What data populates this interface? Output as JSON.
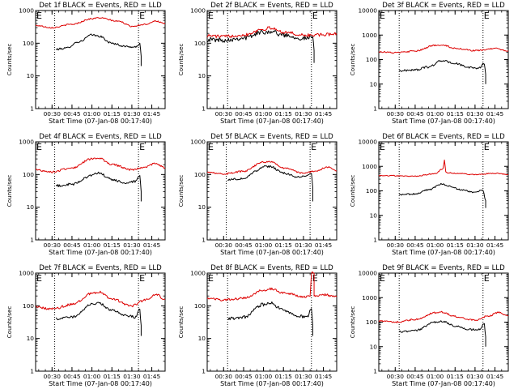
{
  "colors": {
    "events": "#000000",
    "lld": "#dd0000",
    "background": "#ffffff",
    "axis": "#000000"
  },
  "chart_data": [
    {
      "type": "line",
      "title": "Det 1f BLACK = Events, RED = LLD",
      "xlabel": "Start Time (07-Jan-08 00:17:40)",
      "ylabel": "Counts/sec",
      "yscale": "log",
      "ylim": [
        1,
        1000
      ],
      "yticks": [
        "1",
        "10",
        "100",
        "1000"
      ],
      "xlim": [
        "00:17:40",
        "01:55:00"
      ],
      "xticks": [
        "00:30",
        "00:45",
        "01:00",
        "01:15",
        "01:30",
        "01:45"
      ],
      "markers": [
        {
          "label": "E",
          "x": "00:17:40",
          "dotted_line": false
        },
        {
          "label": "E",
          "x": "01:35:00",
          "dotted_line": true
        },
        {
          "label": "",
          "x": "00:32:00",
          "dotted_line": true
        }
      ],
      "series": [
        {
          "key": "events",
          "x": [
            "00:33",
            "00:40",
            "00:50",
            "01:00",
            "01:05",
            "01:15",
            "01:25",
            "01:33",
            "01:36",
            "01:37",
            "01:37"
          ],
          "values": [
            65,
            70,
            110,
            180,
            165,
            100,
            80,
            75,
            100,
            40,
            20
          ],
          "noise": 0.03
        },
        {
          "key": "lld",
          "x": [
            "00:17:40",
            "00:30",
            "00:45",
            "01:00",
            "01:05",
            "01:20",
            "01:30",
            "01:40",
            "01:48",
            "01:55"
          ],
          "values": [
            350,
            300,
            380,
            560,
            600,
            470,
            330,
            380,
            480,
            390
          ],
          "noise": 0.02
        }
      ]
    },
    {
      "type": "line",
      "title": "Det 2f BLACK = Events, RED = LLD",
      "xlabel": "Start Time (07-Jan-08 00:17:40)",
      "ylabel": "Counts/sec",
      "yscale": "log",
      "ylim": [
        1,
        1000
      ],
      "yticks": [
        "1",
        "10",
        "100",
        "1000"
      ],
      "xlim": [
        "00:17:40",
        "01:55:00"
      ],
      "xticks": [
        "00:30",
        "00:45",
        "01:00",
        "01:15",
        "01:30",
        "01:45"
      ],
      "markers": [
        {
          "label": "E",
          "x": "00:17:40",
          "dotted_line": false
        },
        {
          "label": "E",
          "x": "01:36:00",
          "dotted_line": true
        },
        {
          "label": "",
          "x": "00:33:00",
          "dotted_line": true
        }
      ],
      "series": [
        {
          "key": "events",
          "x": [
            "00:17:40",
            "00:30",
            "00:45",
            "01:00",
            "01:05",
            "01:15",
            "01:30",
            "01:37",
            "01:38",
            "01:38"
          ],
          "values": [
            130,
            125,
            145,
            220,
            230,
            180,
            140,
            150,
            60,
            25
          ],
          "noise": 0.07
        },
        {
          "key": "lld",
          "x": [
            "00:17:40",
            "00:30",
            "00:45",
            "01:00",
            "01:05",
            "01:15",
            "01:30",
            "01:45",
            "01:55"
          ],
          "values": [
            170,
            160,
            180,
            270,
            290,
            220,
            175,
            180,
            200
          ],
          "noise": 0.05
        }
      ]
    },
    {
      "type": "line",
      "title": "Det 3f BLACK = Events, RED = LLD",
      "xlabel": "Start Time (07-Jan-08 00:17:40)",
      "ylabel": "Counts/sec",
      "yscale": "log",
      "ylim": [
        1,
        10000
      ],
      "yticks": [
        "1",
        "10",
        "100",
        "1000",
        "10000"
      ],
      "xlim": [
        "00:17:40",
        "01:55:00"
      ],
      "xticks": [
        "00:30",
        "00:45",
        "01:00",
        "01:15",
        "01:30",
        "01:45"
      ],
      "markers": [
        {
          "label": "E",
          "x": "00:17:40",
          "dotted_line": false
        },
        {
          "label": "E",
          "x": "01:36:00",
          "dotted_line": true
        },
        {
          "label": "",
          "x": "00:33:00",
          "dotted_line": true
        }
      ],
      "series": [
        {
          "key": "events",
          "x": [
            "00:33",
            "00:45",
            "00:55",
            "01:05",
            "01:15",
            "01:25",
            "01:33",
            "01:37",
            "01:38",
            "01:38"
          ],
          "values": [
            35,
            38,
            50,
            90,
            70,
            48,
            45,
            70,
            25,
            10
          ],
          "noise": 0.04
        },
        {
          "key": "lld",
          "x": [
            "00:17:40",
            "00:30",
            "00:45",
            "01:00",
            "01:05",
            "01:15",
            "01:30",
            "01:45",
            "01:55"
          ],
          "values": [
            210,
            190,
            220,
            380,
            400,
            290,
            230,
            280,
            230
          ],
          "noise": 0.03
        }
      ]
    },
    {
      "type": "line",
      "title": "Det 4f BLACK = Events, RED = LLD",
      "xlabel": "Start Time (07-Jan-08 00:17:40)",
      "ylabel": "Counts/sec",
      "yscale": "log",
      "ylim": [
        1,
        1000
      ],
      "yticks": [
        "1",
        "10",
        "100",
        "1000"
      ],
      "xlim": [
        "00:17:40",
        "01:55:00"
      ],
      "xticks": [
        "00:30",
        "00:45",
        "01:00",
        "01:15",
        "01:30",
        "01:45"
      ],
      "markers": [
        {
          "label": "E",
          "x": "00:17:40",
          "dotted_line": false
        },
        {
          "label": "E",
          "x": "01:35:00",
          "dotted_line": true
        },
        {
          "label": "",
          "x": "00:32:00",
          "dotted_line": true
        }
      ],
      "series": [
        {
          "key": "events",
          "x": [
            "00:33",
            "00:45",
            "01:00",
            "01:05",
            "01:15",
            "01:25",
            "01:33",
            "01:36",
            "01:37",
            "01:37"
          ],
          "values": [
            45,
            50,
            95,
            110,
            70,
            55,
            60,
            90,
            30,
            15
          ],
          "noise": 0.04
        },
        {
          "key": "lld",
          "x": [
            "00:17:40",
            "00:30",
            "00:45",
            "01:00",
            "01:05",
            "01:15",
            "01:30",
            "01:40",
            "01:48",
            "01:55"
          ],
          "values": [
            140,
            120,
            160,
            300,
            320,
            200,
            140,
            170,
            220,
            160
          ],
          "noise": 0.03
        }
      ]
    },
    {
      "type": "line",
      "title": "Det 5f BLACK = Events, RED = LLD",
      "xlabel": "Start Time (07-Jan-08 00:17:40)",
      "ylabel": "Counts/sec",
      "yscale": "log",
      "ylim": [
        1,
        1000
      ],
      "yticks": [
        "1",
        "10",
        "100",
        "1000"
      ],
      "xlim": [
        "00:17:40",
        "01:55:00"
      ],
      "xticks": [
        "00:30",
        "00:45",
        "01:00",
        "01:15",
        "01:30",
        "01:45"
      ],
      "markers": [
        {
          "label": "E",
          "x": "00:17:40",
          "dotted_line": false
        },
        {
          "label": "E",
          "x": "01:35:00",
          "dotted_line": true
        },
        {
          "label": "",
          "x": "00:32:00",
          "dotted_line": true
        }
      ],
      "series": [
        {
          "key": "events",
          "x": [
            "00:33",
            "00:45",
            "00:55",
            "01:00",
            "01:05",
            "01:15",
            "01:25",
            "01:33",
            "01:36",
            "01:37",
            "01:37"
          ],
          "values": [
            70,
            75,
            130,
            180,
            175,
            110,
            85,
            90,
            110,
            40,
            15
          ],
          "noise": 0.03
        },
        {
          "key": "lld",
          "x": [
            "00:17:40",
            "00:30",
            "00:45",
            "01:00",
            "01:05",
            "01:15",
            "01:30",
            "01:40",
            "01:48",
            "01:55"
          ],
          "values": [
            120,
            105,
            125,
            240,
            250,
            160,
            110,
            130,
            170,
            130
          ],
          "noise": 0.025
        }
      ]
    },
    {
      "type": "line",
      "title": "Det 6f BLACK = Events, RED = LLD",
      "xlabel": "Start Time (07-Jan-08 00:17:40)",
      "ylabel": "Counts/sec",
      "yscale": "log",
      "ylim": [
        1,
        10000
      ],
      "yticks": [
        "1",
        "10",
        "100",
        "1000",
        "10000"
      ],
      "xlim": [
        "00:17:40",
        "01:55:00"
      ],
      "xticks": [
        "00:30",
        "00:45",
        "01:00",
        "01:15",
        "01:30",
        "01:45"
      ],
      "markers": [
        {
          "label": "E",
          "x": "00:17:40",
          "dotted_line": false
        },
        {
          "label": "E",
          "x": "01:36:00",
          "dotted_line": true
        },
        {
          "label": "",
          "x": "00:33:00",
          "dotted_line": true
        }
      ],
      "series": [
        {
          "key": "events",
          "x": [
            "00:33",
            "00:45",
            "00:55",
            "01:05",
            "01:10",
            "01:20",
            "01:30",
            "01:36",
            "01:38",
            "01:38"
          ],
          "values": [
            70,
            75,
            110,
            190,
            160,
            110,
            85,
            110,
            40,
            20
          ],
          "noise": 0.03
        },
        {
          "key": "lld",
          "x": [
            "00:17:40",
            "00:45",
            "01:00",
            "01:06",
            "01:07",
            "01:08",
            "01:09",
            "01:15",
            "01:30",
            "01:45",
            "01:55"
          ],
          "values": [
            420,
            400,
            500,
            800,
            1800,
            600,
            550,
            520,
            460,
            520,
            460
          ],
          "noise": 0.02
        }
      ]
    },
    {
      "type": "line",
      "title": "Det 7f BLACK = Events, RED = LLD",
      "xlabel": "Start Time (07-Jan-08 00:17:40)",
      "ylabel": "Counts/sec",
      "yscale": "log",
      "ylim": [
        1,
        1000
      ],
      "yticks": [
        "1",
        "10",
        "100",
        "1000"
      ],
      "xlim": [
        "00:17:40",
        "01:55:00"
      ],
      "xticks": [
        "00:30",
        "00:45",
        "01:00",
        "01:15",
        "01:30",
        "01:45"
      ],
      "markers": [
        {
          "label": "E",
          "x": "00:17:40",
          "dotted_line": false
        },
        {
          "label": "E",
          "x": "01:35:00",
          "dotted_line": true
        },
        {
          "label": "",
          "x": "00:32:00",
          "dotted_line": true
        }
      ],
      "series": [
        {
          "key": "events",
          "x": [
            "00:33",
            "00:45",
            "01:00",
            "01:05",
            "01:15",
            "01:25",
            "01:33",
            "01:36",
            "01:37",
            "01:37"
          ],
          "values": [
            40,
            45,
            110,
            120,
            75,
            50,
            45,
            80,
            25,
            12
          ],
          "noise": 0.04
        },
        {
          "key": "lld",
          "x": [
            "00:17:40",
            "00:30",
            "00:45",
            "01:00",
            "01:05",
            "01:15",
            "01:30",
            "01:40",
            "01:48",
            "01:55"
          ],
          "values": [
            90,
            80,
            110,
            240,
            270,
            160,
            100,
            150,
            220,
            160
          ],
          "noise": 0.035
        }
      ]
    },
    {
      "type": "line",
      "title": "Det 8f BLACK = Events, RED = LLD",
      "xlabel": "Start Time (07-Jan-08 00:17:40)",
      "ylabel": "Counts/sec",
      "yscale": "log",
      "ylim": [
        1,
        1000
      ],
      "yticks": [
        "1",
        "10",
        "100",
        "1000"
      ],
      "xlim": [
        "00:17:40",
        "01:55:00"
      ],
      "xticks": [
        "00:30",
        "00:45",
        "01:00",
        "01:15",
        "01:30",
        "01:45"
      ],
      "markers": [
        {
          "label": "E",
          "x": "00:17:40",
          "dotted_line": false
        },
        {
          "label": "E",
          "x": "01:36:00",
          "dotted_line": true
        },
        {
          "label": "",
          "x": "00:33:00",
          "dotted_line": true
        }
      ],
      "series": [
        {
          "key": "events",
          "x": [
            "00:33",
            "00:45",
            "01:00",
            "01:05",
            "01:15",
            "01:25",
            "01:33",
            "01:36",
            "01:37",
            "01:37"
          ],
          "values": [
            40,
            45,
            110,
            120,
            75,
            50,
            45,
            80,
            25,
            12
          ],
          "noise": 0.05
        },
        {
          "key": "lld",
          "x": [
            "00:17:40",
            "00:30",
            "00:45",
            "01:00",
            "01:05",
            "01:15",
            "01:30",
            "01:35",
            "01:36",
            "01:37",
            "01:38",
            "01:38",
            "01:45",
            "01:55"
          ],
          "values": [
            170,
            150,
            170,
            300,
            330,
            250,
            190,
            200,
            1000,
            1000,
            1000,
            200,
            220,
            190
          ],
          "noise": 0.035
        }
      ]
    },
    {
      "type": "line",
      "title": "Det 9f BLACK = Events, RED = LLD",
      "xlabel": "Start Time (07-Jan-08 00:17:40)",
      "ylabel": "Counts/sec",
      "yscale": "log",
      "ylim": [
        1,
        10000
      ],
      "yticks": [
        "1",
        "10",
        "100",
        "1000",
        "10000"
      ],
      "xlim": [
        "00:17:40",
        "01:55:00"
      ],
      "xticks": [
        "00:30",
        "00:45",
        "01:00",
        "01:15",
        "01:30",
        "01:45"
      ],
      "markers": [
        {
          "label": "E",
          "x": "00:17:40",
          "dotted_line": false
        },
        {
          "label": "E",
          "x": "01:36:00",
          "dotted_line": true
        },
        {
          "label": "",
          "x": "00:33:00",
          "dotted_line": true
        }
      ],
      "series": [
        {
          "key": "events",
          "x": [
            "00:33",
            "00:45",
            "01:00",
            "01:05",
            "01:15",
            "01:25",
            "01:33",
            "01:37",
            "01:38",
            "01:38"
          ],
          "values": [
            40,
            45,
            100,
            110,
            70,
            50,
            50,
            85,
            25,
            10
          ],
          "noise": 0.04
        },
        {
          "key": "lld",
          "x": [
            "00:17:40",
            "00:30",
            "00:45",
            "01:00",
            "01:05",
            "01:15",
            "01:30",
            "01:40",
            "01:48",
            "01:55"
          ],
          "values": [
            110,
            100,
            130,
            240,
            260,
            170,
            120,
            180,
            250,
            180
          ],
          "noise": 0.035
        }
      ]
    }
  ]
}
